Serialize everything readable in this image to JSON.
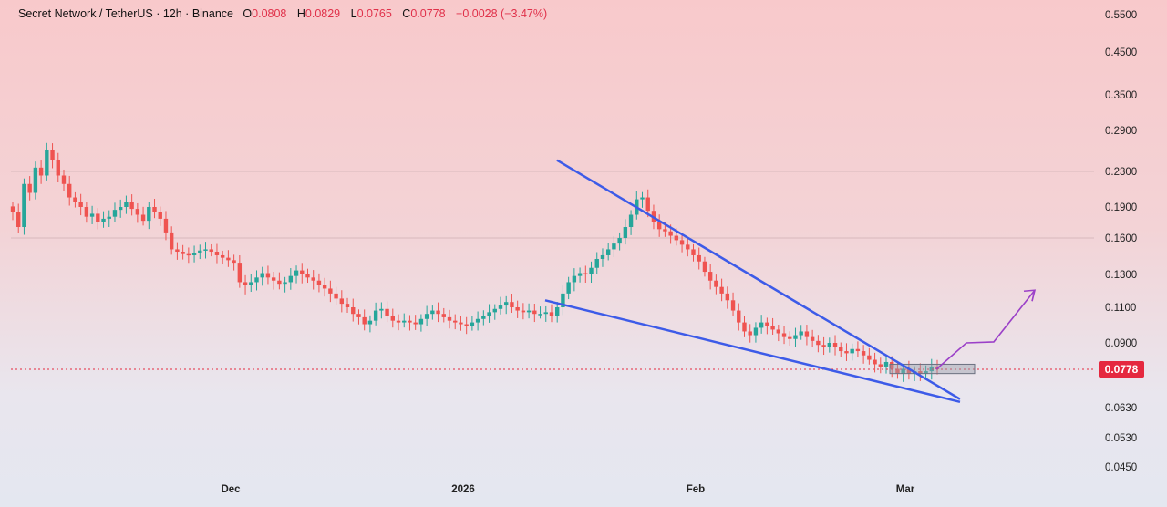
{
  "header": {
    "symbol": "Secret Network / TetherUS · 12h · Binance",
    "o_label": "O",
    "o_value": "0.0808",
    "h_label": "H",
    "h_value": "0.0829",
    "l_label": "L",
    "l_value": "0.0765",
    "c_label": "C",
    "c_value": "0.0778",
    "change": "−0.0028 (−3.47%)"
  },
  "colors": {
    "up": "#26a69a",
    "down": "#ef5350",
    "trendline": "#3d5be8",
    "projection": "#9b40c8",
    "last_price": "#e5283f"
  },
  "chart_data": {
    "type": "candlestick",
    "title": "Secret Network / TetherUS · 12h · Binance",
    "ylabel": "",
    "xlabel": "",
    "y_scale": "log",
    "ylim": [
      0.044,
      0.57
    ],
    "y_ticks": [
      "0.5500",
      "0.4500",
      "0.3500",
      "0.2900",
      "0.2300",
      "0.1900",
      "0.1600",
      "0.1300",
      "0.1100",
      "0.0900",
      "0.0630",
      "0.0530",
      "0.0450"
    ],
    "x_ticks": [
      "Dec",
      "2026",
      "Feb",
      "Mar"
    ],
    "last_price": "0.0778",
    "close_series": [
      0.185,
      0.17,
      0.215,
      0.205,
      0.235,
      0.225,
      0.26,
      0.245,
      0.225,
      0.215,
      0.2,
      0.195,
      0.19,
      0.18,
      0.183,
      0.175,
      0.178,
      0.18,
      0.187,
      0.19,
      0.195,
      0.188,
      0.182,
      0.176,
      0.19,
      0.185,
      0.178,
      0.165,
      0.15,
      0.148,
      0.146,
      0.145,
      0.147,
      0.149,
      0.15,
      0.148,
      0.145,
      0.143,
      0.141,
      0.139,
      0.125,
      0.123,
      0.125,
      0.128,
      0.131,
      0.128,
      0.126,
      0.124,
      0.125,
      0.129,
      0.133,
      0.13,
      0.128,
      0.126,
      0.123,
      0.121,
      0.118,
      0.115,
      0.112,
      0.11,
      0.106,
      0.104,
      0.1,
      0.102,
      0.108,
      0.109,
      0.105,
      0.102,
      0.101,
      0.102,
      0.101,
      0.1,
      0.103,
      0.106,
      0.108,
      0.106,
      0.104,
      0.102,
      0.101,
      0.1,
      0.099,
      0.101,
      0.103,
      0.105,
      0.107,
      0.109,
      0.111,
      0.113,
      0.11,
      0.108,
      0.107,
      0.108,
      0.106,
      0.106,
      0.107,
      0.105,
      0.11,
      0.118,
      0.125,
      0.129,
      0.131,
      0.13,
      0.135,
      0.142,
      0.145,
      0.15,
      0.155,
      0.16,
      0.17,
      0.182,
      0.198,
      0.2,
      0.186,
      0.175,
      0.168,
      0.166,
      0.162,
      0.158,
      0.154,
      0.15,
      0.145,
      0.14,
      0.132,
      0.126,
      0.122,
      0.118,
      0.114,
      0.108,
      0.101,
      0.096,
      0.094,
      0.098,
      0.101,
      0.099,
      0.097,
      0.095,
      0.093,
      0.092,
      0.094,
      0.096,
      0.093,
      0.091,
      0.089,
      0.088,
      0.09,
      0.088,
      0.086,
      0.085,
      0.087,
      0.086,
      0.084,
      0.082,
      0.08,
      0.079,
      0.081,
      0.078,
      0.076,
      0.078,
      0.076,
      0.077,
      0.076,
      0.077,
      0.079,
      0.0778
    ],
    "annotations": {
      "upper_trendline": [
        [
          0.245,
          0.066
        ]
      ],
      "lower_trendline": [
        [
          0.114,
          0.065
        ]
      ],
      "projection_path": [
        0.0778,
        0.09,
        0.0905,
        0.12
      ],
      "breakout_zone": [
        0.076,
        0.08
      ]
    }
  }
}
